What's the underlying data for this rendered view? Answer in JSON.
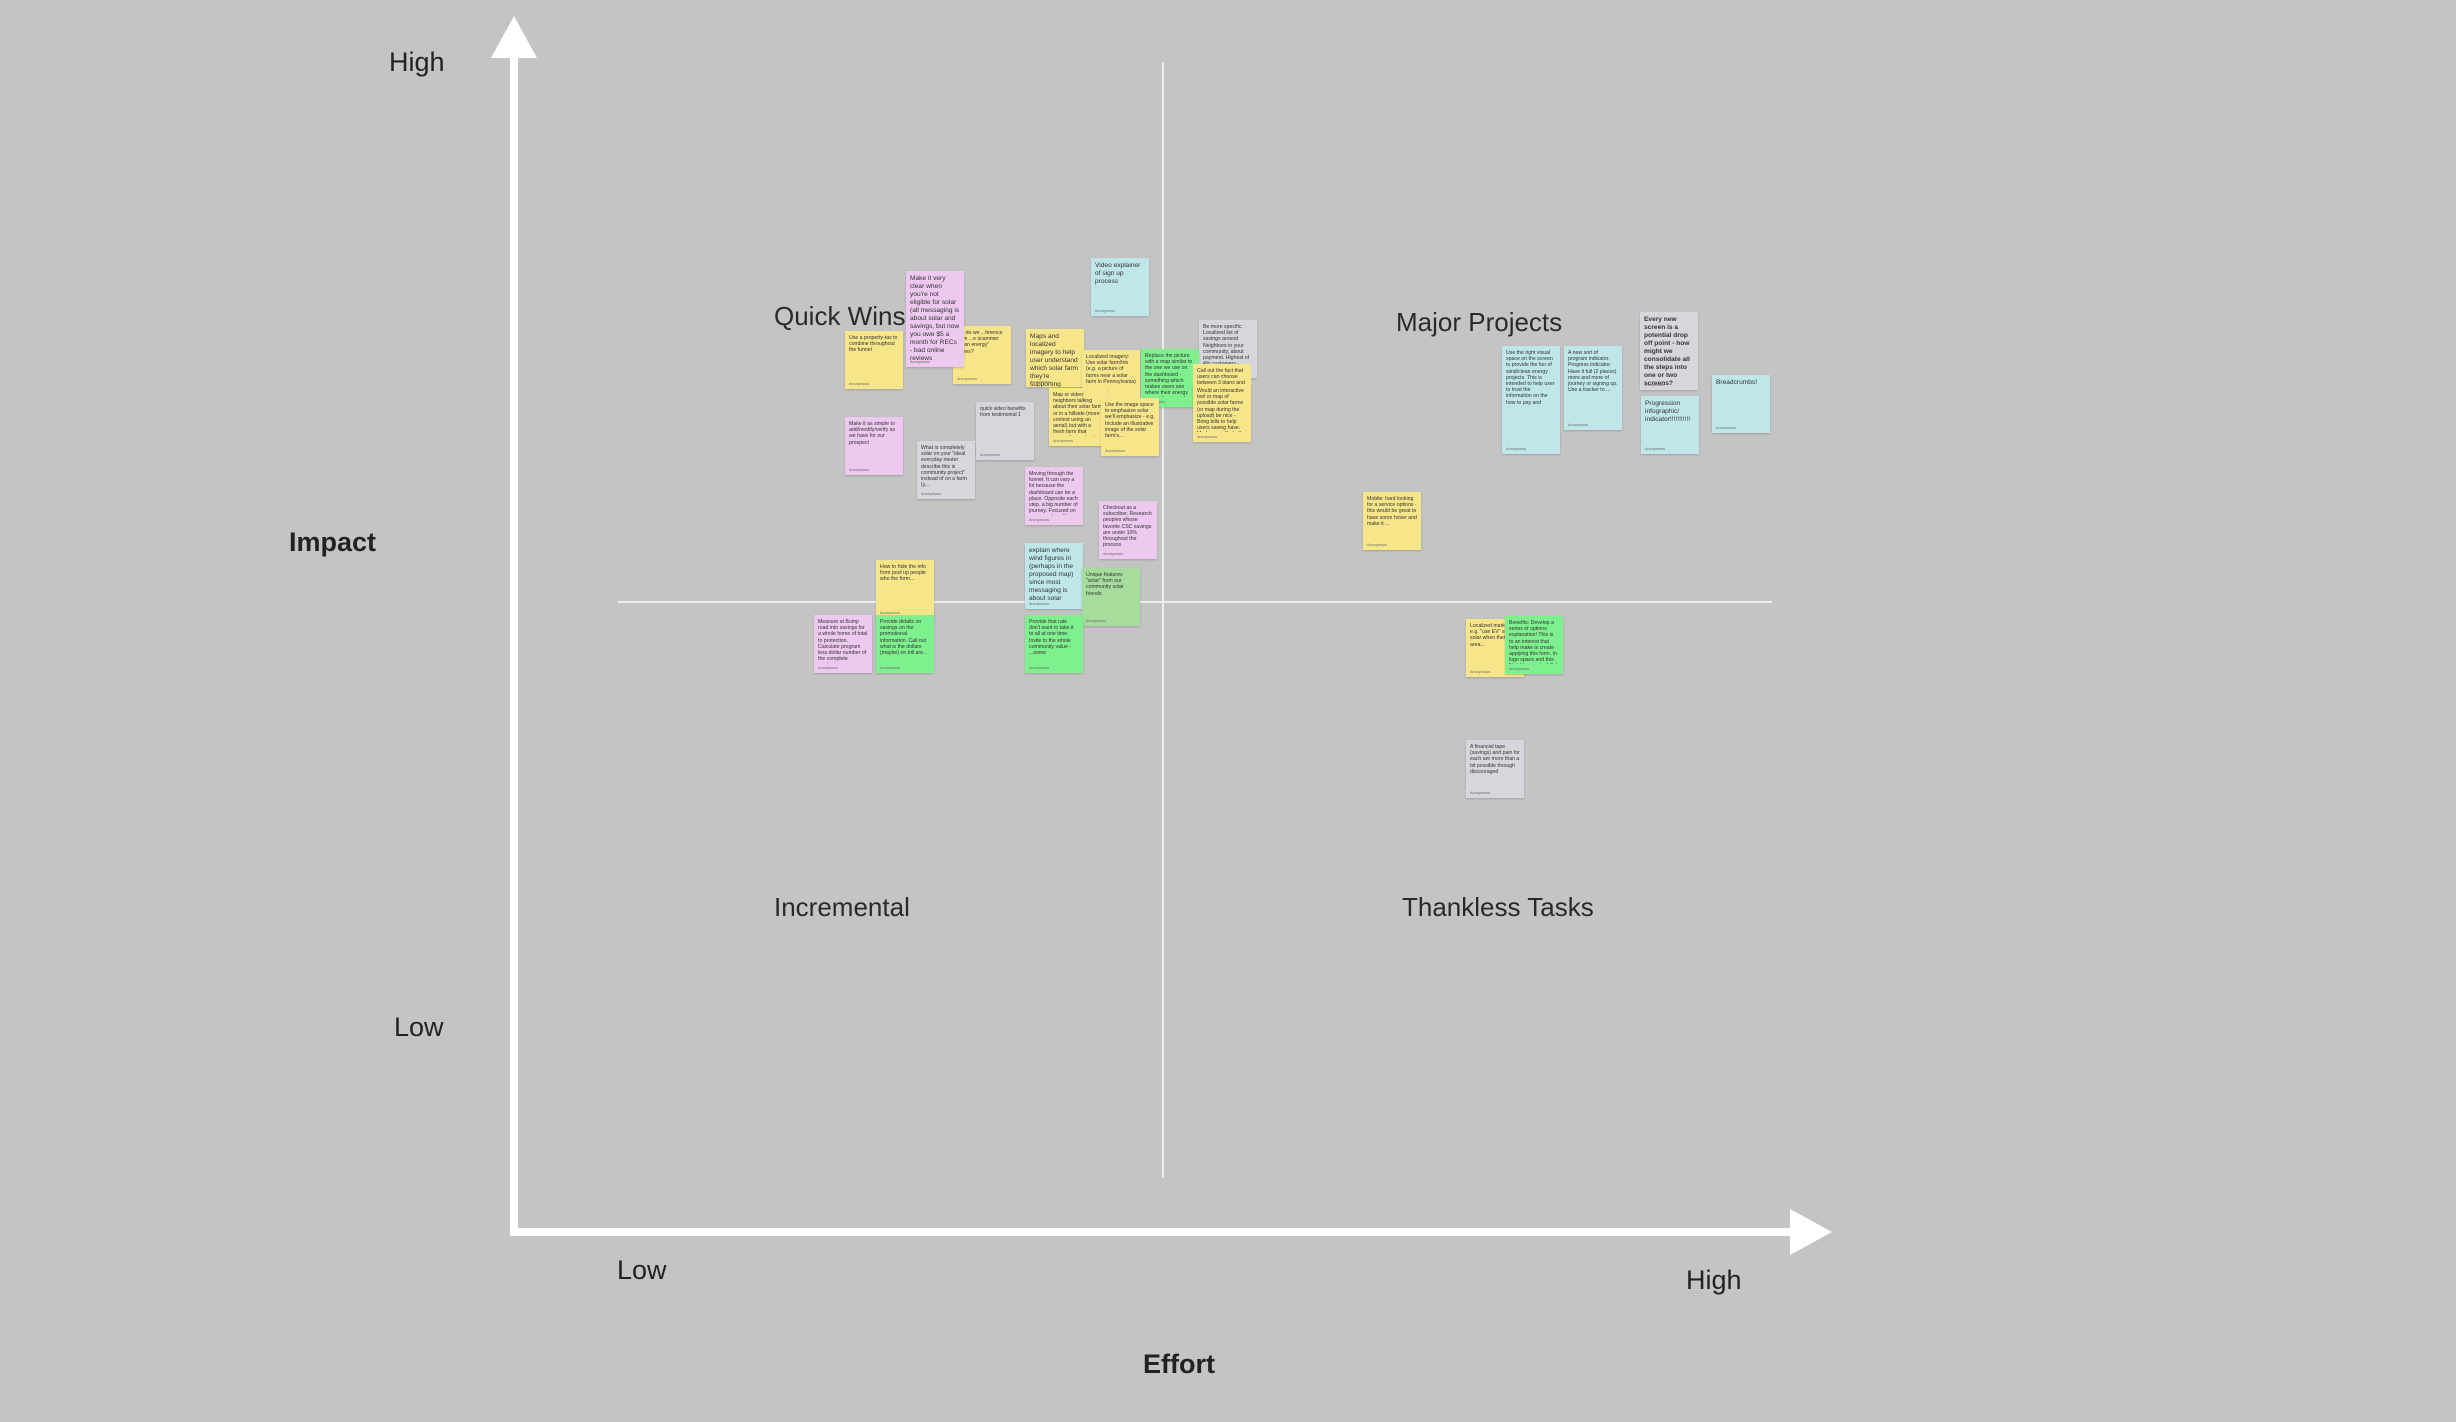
{
  "axes": {
    "y_high": "High",
    "y_low": "Low",
    "y_title": "Impact",
    "x_low": "Low",
    "x_high": "High",
    "x_title": "Effort"
  },
  "quadrants": {
    "top_left": "Quick Wins",
    "top_right": "Major Projects",
    "bottom_left": "Incremental",
    "bottom_right": "Thankless Tasks"
  },
  "colors": {
    "background": "#c4c4c4",
    "axis": "#ffffff",
    "divider": "#ececec",
    "yellow": "#f7e58a",
    "pink": "#edc8ef",
    "cyan": "#bfe6e9",
    "green": "#7ff08e",
    "light_green": "#a7dd9c",
    "gray": "#d5d7dc"
  },
  "notes": {
    "n01": {
      "color": "cyan",
      "text": "Video explainer of sign up process",
      "author": "Anonymous"
    },
    "n02": {
      "color": "pink",
      "text": "Make it very clear when you're not eligible for solar (all messaging is about solar and savings, but now you owe $5 a month for RECs - bad online reviews",
      "author": "Anonymous"
    },
    "n03": {
      "color": "yellow",
      "text": "...e do we ...ference from ...e scammer ...ean energy\" ...nies?",
      "author": "Anonymous"
    },
    "n04": {
      "color": "yellow",
      "text": "Maps and localized imagery to help user understand which solar farm they're supporting",
      "author": "Anonymous"
    },
    "n05": {
      "color": "yellow",
      "text": "Localized imagery: Use solar farm/Iris (e.g. a picture of farms near a solar farm in Pennsylvania)",
      "author": "Anonymous"
    },
    "n06": {
      "color": "green",
      "text": "Replace the picture with a map similar to the one we use on the dashboard - something which makes users see where their energy comes from - makes it tangible",
      "author": "Anonymous"
    },
    "n07": {
      "color": "gray",
      "text": "Be more specific: Localized list of savings around Neighbors in your community, about payment. Highest of 4% customers - Neighborhood ...",
      "author": "Anonymous"
    },
    "n08": {
      "color": "yellow",
      "text": "Call out the fact that users can choose between 3 plans and the 1-project...",
      "author": "Anonymous"
    },
    "n09": {
      "color": "yellow",
      "text": "Use a property-tax to combine throughout the funnel",
      "author": "Anonymous"
    },
    "n10": {
      "color": "yellow",
      "text": "Map or video: neighbors talking about their solar farm or in a hillside (more context using an aerial) but with a fresh farm that supporting option to explore",
      "author": "Anonymous"
    },
    "n11": {
      "color": "yellow",
      "text": "Use the image space to emphasize solar we'll emphasize - e.g. Include an illustrative image of the solar farm's...",
      "author": "Anonymous"
    },
    "n12": {
      "color": "yellow",
      "text": "Would an interactive tool or map of possible solar farms (or map during the upload) be nice - Bring bills to help users saving have. Made more likely it's a real ...",
      "author": "Anonymous"
    },
    "n13": {
      "color": "pink",
      "text": "Make it as simple to add/modify/verify as we have for our prospect",
      "author": "Anonymous"
    },
    "n14": {
      "color": "gray",
      "text": "What is completely solar on your \"ideal everyday neuter describe this is community project\" instead of on a farm (y...",
      "author": "Anonymous"
    },
    "n15": {
      "color": "gray",
      "text": "quick video benefits from testimonial 1",
      "author": "Anonymous"
    },
    "n16": {
      "color": "pink",
      "text": "Moving through the funnel. It can vary a lot because the dashboard can be a place. Opposite each step, a big number of journey. Focused on your new benefits",
      "author": "Anonymous"
    },
    "n17": {
      "color": "pink",
      "text": "Checkout as a subscriber. Research peoples whose favorite CSC savings are under 10% throughout the process",
      "author": "Anonymous"
    },
    "n18": {
      "color": "cyan",
      "text": "explain where wind figures in (perhaps in the proposed map) since most messaging is about solar",
      "author": "Anonymous"
    },
    "n19": {
      "color": "lgreen",
      "text": "Unique features \"solar\" from our community solar friends",
      "author": "Anonymous"
    },
    "n20": {
      "color": "yellow",
      "text": "How to hide the info from pool up people who the form...",
      "author": "Anonymous"
    },
    "n21": {
      "color": "pink",
      "text": "Measure at Bump road into savings for a whole home of total to protection. Calculate program less dollar number of the complete products",
      "author": "Anonymous"
    },
    "n22": {
      "color": "green",
      "text": "Provide details on savings on the promotional information. Call out what is the dollars (maybe) on bill are...",
      "author": "Anonymous"
    },
    "n23": {
      "color": "green",
      "text": "Provide that rate don't want to take it to all at one time. Invite to the whole community value - ...some",
      "author": "Anonymous"
    },
    "n24": {
      "color": "cyan",
      "text": "Use the right visual space on the screen to provide the fun of wind/clean energy projects. This is intended to help user to trust the information on the how to pay and",
      "author": "Anonymous"
    },
    "n25": {
      "color": "cyan",
      "text": "A new sort of program indicator. Progress indicator: Have it full (2 places) more and more of journey or signing up. Use a tracker to ...",
      "author": "Anonymous"
    },
    "n26": {
      "color": "gray",
      "text": "Every new screen is a potential drop off point - how might we consolidate all the steps into one or two screens?",
      "author": "Anonymous"
    },
    "n27": {
      "color": "cyan",
      "text": "Progression infographic/ indicator!!!!!!!!!!!",
      "author": "Anonymous"
    },
    "n28": {
      "color": "cyan",
      "text": "Breadcrumbs!",
      "author": "Anonymous"
    },
    "n29": {
      "color": "yellow",
      "text": "Mobile: hard looking for a service options - this would be great to have some hover and make it ...",
      "author": "Anonymous"
    },
    "n30": {
      "color": "yellow",
      "text": "Localized marketing e.g. \"use EV\" solar ... solar when their area...",
      "author": "Anonymous"
    },
    "n31": {
      "color": "green",
      "text": "Benefits: Develop a series of options explanation! This is to an interest that help make is create applying this form. In logo space and this Neighbors solar bills!",
      "author": "Anonymous"
    },
    "n32": {
      "color": "gray",
      "text": "A financial tape (savings) and pain for each are more than a bit possible through discouraged",
      "author": "Anonymous"
    }
  }
}
